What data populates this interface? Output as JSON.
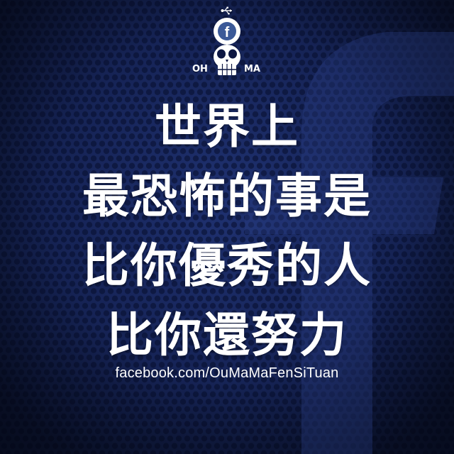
{
  "logo": {
    "left_text": "OH",
    "right_text": "MA",
    "badge_letter": "f"
  },
  "quote": {
    "lines": [
      "世界上",
      "最恐怖的事是",
      "比你優秀的人",
      "比你還努力"
    ]
  },
  "footer": {
    "url": "facebook.com/OuMaMaFenSiTuan"
  },
  "colors": {
    "background": "#172559",
    "text": "#ffffff",
    "badge": "#3b5998"
  },
  "icons": [
    "usb-icon",
    "skull-icon",
    "facebook-f-icon"
  ]
}
